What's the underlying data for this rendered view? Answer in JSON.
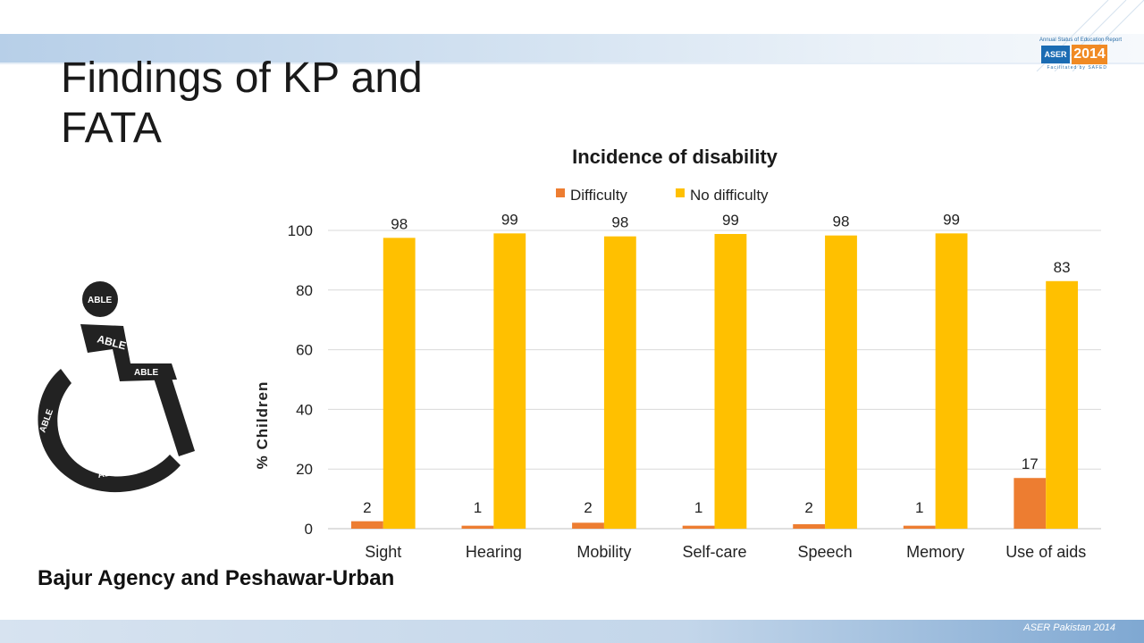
{
  "slide": {
    "title": "Findings of KP and FATA",
    "caption": "Bajur Agency and Peshawar-Urban",
    "footer": "ASER Pakistan 2014",
    "logo": {
      "top_text": "Annual Status of Education Report",
      "brand": "ASER",
      "year": "2014",
      "sub_text": "Facilitated by SAFED"
    },
    "image_word": "ABLE"
  },
  "chart_data": {
    "type": "bar",
    "title": "Incidence of disability",
    "ylabel": "% Children",
    "xlabel": "",
    "ylim": [
      0,
      100
    ],
    "yticks": [
      0,
      20,
      40,
      60,
      80,
      100
    ],
    "grid": true,
    "legend_position": "top",
    "categories": [
      "Sight",
      "Hearing",
      "Mobility",
      "Self-care",
      "Speech",
      "Memory",
      "Use of aids"
    ],
    "series": [
      {
        "name": "Difficulty",
        "color": "#ED7D31",
        "values": [
          2.5,
          1,
          2,
          1,
          1.5,
          1,
          17
        ],
        "labels": [
          "2",
          "1",
          "2",
          "1",
          "2",
          "1",
          "17"
        ]
      },
      {
        "name": "No difficulty",
        "color": "#FFC000",
        "values": [
          97.5,
          99,
          98,
          98.8,
          98.3,
          99,
          83
        ],
        "labels": [
          "98",
          "99",
          "98",
          "99",
          "98",
          "99",
          "83"
        ]
      }
    ]
  }
}
